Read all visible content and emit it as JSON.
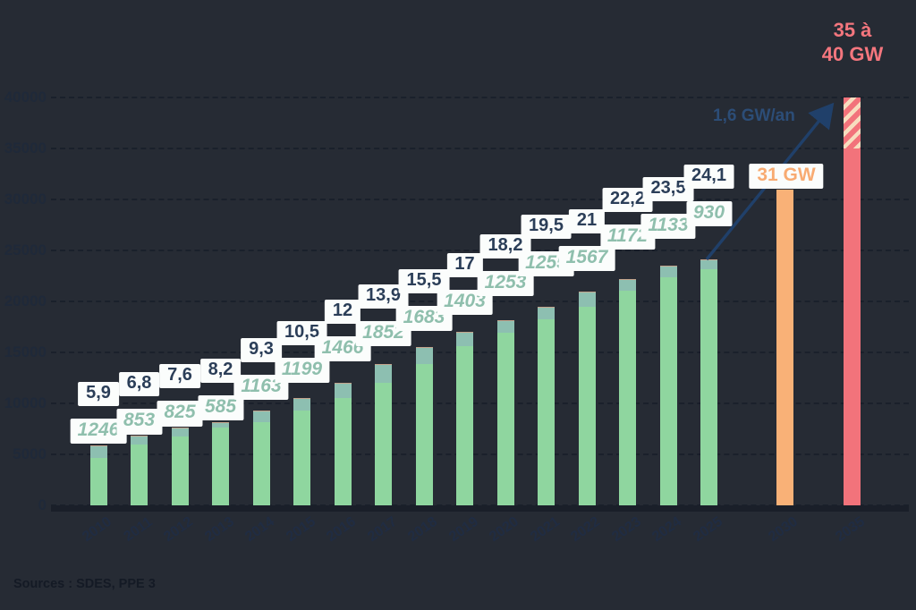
{
  "colors": {
    "background": "#262b34",
    "bar_green": "#8fd69f",
    "bar_cap_teal": "#8dbfb1",
    "bar_orange": "#f9b177",
    "bar_red": "#f2737b",
    "hatch_cream": "#f7ddbf",
    "chip_background": "#fbfdfc",
    "cumulative_text": "#2b3e58",
    "annual_text": "#8fbfad",
    "axis_text": "#202c42",
    "arrow_navy": "#20406a",
    "orange_text": "#f8ab72",
    "red_text": "#f4767e"
  },
  "source_note": "Sources : SDES, PPE 3",
  "chart_data": {
    "type": "bar",
    "title": "",
    "xlabel": "",
    "ylabel": "",
    "y_unit": "MW",
    "ylim": [
      0,
      40000
    ],
    "ytick_step": 5000,
    "ytick_labels": [
      "0",
      "5000",
      "10000",
      "15000",
      "20000",
      "25000",
      "30000",
      "35000",
      "40000"
    ],
    "grid": "horizontal-dashed",
    "legend": "none",
    "bars": [
      {
        "year": "2010",
        "cumulative_gw": "5,9",
        "cumulative_mw": 5900,
        "new_mw": "1246",
        "new_mw_value": 1246
      },
      {
        "year": "2011",
        "cumulative_gw": "6,8",
        "cumulative_mw": 6800,
        "new_mw": "853",
        "new_mw_value": 853
      },
      {
        "year": "2012",
        "cumulative_gw": "7,6",
        "cumulative_mw": 7600,
        "new_mw": "825",
        "new_mw_value": 825
      },
      {
        "year": "2013",
        "cumulative_gw": "8,2",
        "cumulative_mw": 8200,
        "new_mw": "585",
        "new_mw_value": 585
      },
      {
        "year": "2014",
        "cumulative_gw": "9,3",
        "cumulative_mw": 9300,
        "new_mw": "1163",
        "new_mw_value": 1163
      },
      {
        "year": "2015",
        "cumulative_gw": "10,5",
        "cumulative_mw": 10500,
        "new_mw": "1199",
        "new_mw_value": 1199
      },
      {
        "year": "2016",
        "cumulative_gw": "12",
        "cumulative_mw": 12000,
        "new_mw": "1466",
        "new_mw_value": 1466
      },
      {
        "year": "2017",
        "cumulative_gw": "13,9",
        "cumulative_mw": 13900,
        "new_mw": "1852",
        "new_mw_value": 1852
      },
      {
        "year": "2018",
        "cumulative_gw": "15,5",
        "cumulative_mw": 15500,
        "new_mw": "1683",
        "new_mw_value": 1683
      },
      {
        "year": "2019",
        "cumulative_gw": "17",
        "cumulative_mw": 17000,
        "new_mw": "1403",
        "new_mw_value": 1403
      },
      {
        "year": "2020",
        "cumulative_gw": "18,2",
        "cumulative_mw": 18200,
        "new_mw": "1253",
        "new_mw_value": 1253
      },
      {
        "year": "2021",
        "cumulative_gw": "19,5",
        "cumulative_mw": 19500,
        "new_mw": "1255",
        "new_mw_value": 1255
      },
      {
        "year": "2022",
        "cumulative_gw": "21",
        "cumulative_mw": 21000,
        "new_mw": "1567",
        "new_mw_value": 1567
      },
      {
        "year": "2023",
        "cumulative_gw": "22,2",
        "cumulative_mw": 22200,
        "new_mw": "1172",
        "new_mw_value": 1172
      },
      {
        "year": "2024",
        "cumulative_gw": "23,5",
        "cumulative_mw": 23500,
        "new_mw": "1133",
        "new_mw_value": 1133
      },
      {
        "year": "2025",
        "cumulative_gw": "24,1",
        "cumulative_mw": 24100,
        "new_mw": "930",
        "new_mw_value": 930
      }
    ],
    "projections": [
      {
        "year": "2030",
        "label": "31 GW",
        "value_mw": 31000,
        "style": "orange-solid"
      },
      {
        "year": "2035",
        "label": "35 à 40 GW",
        "label_lines": [
          "35 à",
          "40 GW"
        ],
        "min_mw": 35000,
        "max_mw": 40000,
        "style": "red-hatched-top"
      }
    ],
    "annotations": [
      {
        "id": "growth-rate",
        "text": "1,6 GW/an"
      }
    ]
  }
}
